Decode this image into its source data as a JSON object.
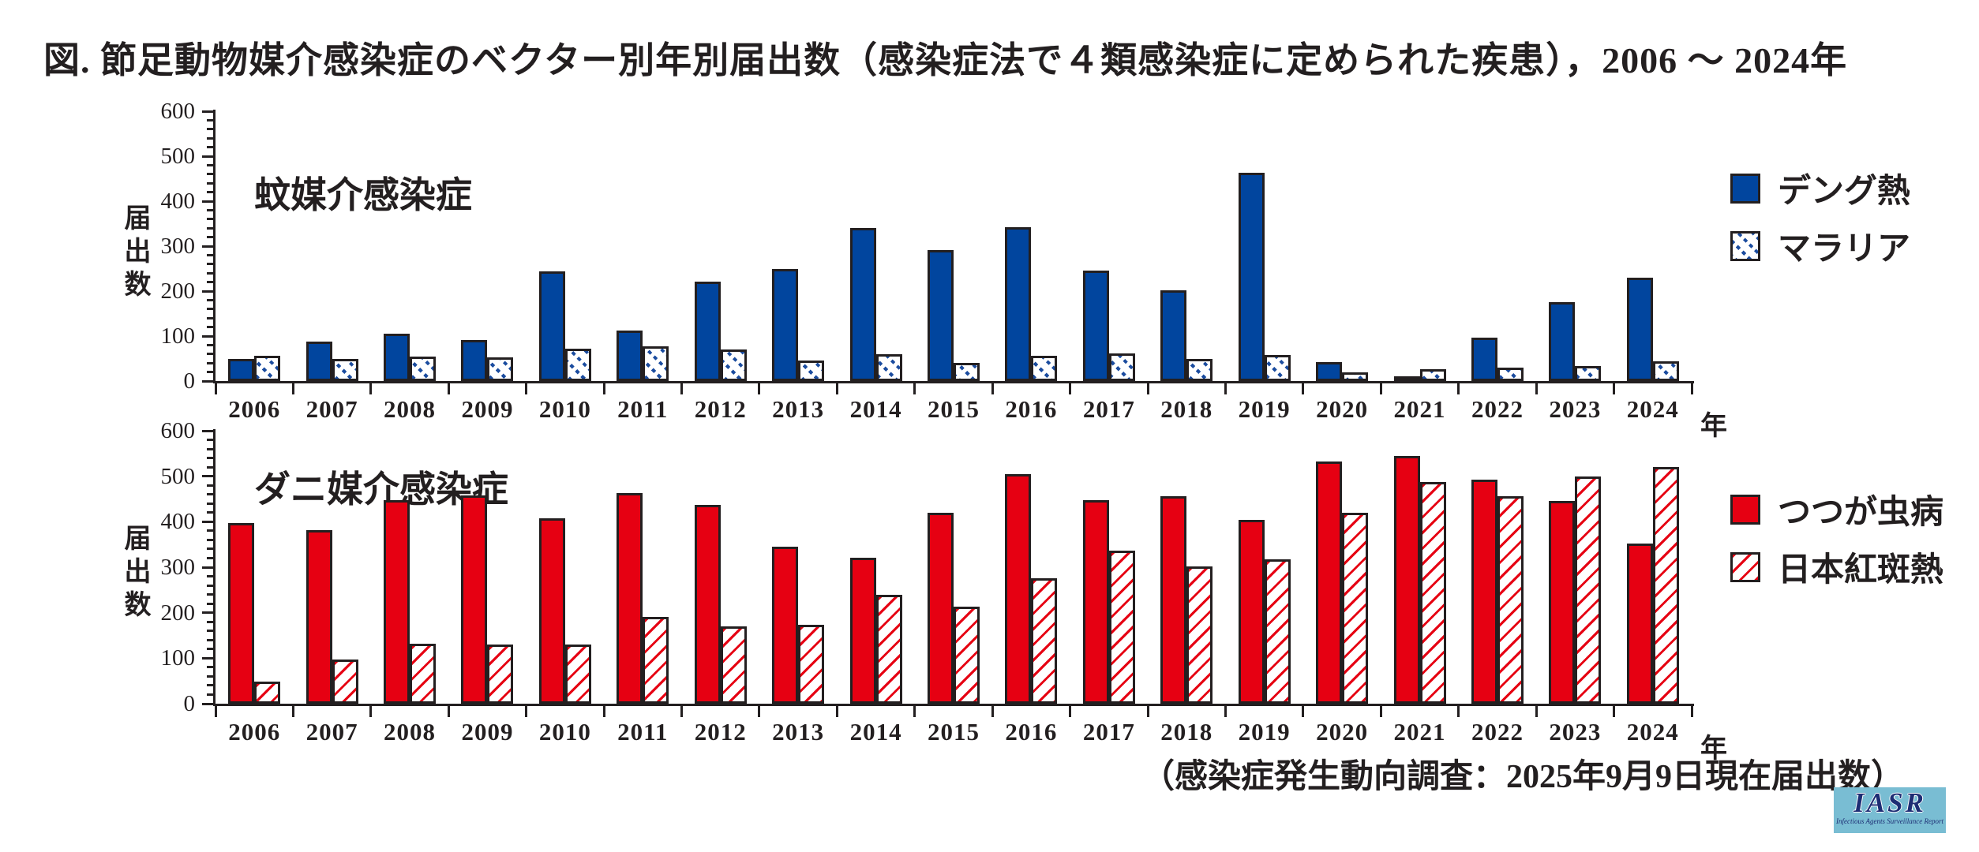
{
  "title": "図. 節足動物媒介感染症のベクター別年別届出数（感染症法で４類感染症に定められた疾患），2006 ～ 2024年",
  "footer": "（感染症発生動向調査：2025年9月9日現在届出数）",
  "axes": {
    "unit_label": "年",
    "y_axis_label": "届出数"
  },
  "colors": {
    "dengue_blue": "#01459e",
    "surveillance_red": "#e60012",
    "axis_ink": "#231f20",
    "logo_bg": "#79bdd3",
    "logo_ink": "#1d2d74"
  },
  "logo": {
    "text": "IASR",
    "subtext": "Infectious Agents Surveillance Report"
  },
  "chart_data": [
    {
      "type": "bar",
      "title": "蚊媒介感染症",
      "xlabel": "年",
      "ylabel": "届出数",
      "ylim": [
        0,
        600
      ],
      "ytick_major": 100,
      "ytick_minor": 20,
      "grid": false,
      "legend_position": "right",
      "categories": [
        "2006",
        "2007",
        "2008",
        "2009",
        "2010",
        "2011",
        "2012",
        "2013",
        "2014",
        "2015",
        "2016",
        "2017",
        "2018",
        "2019",
        "2020",
        "2021",
        "2022",
        "2023",
        "2024"
      ],
      "series": [
        {
          "name": "デング熱",
          "key": "dengue",
          "style": "solid",
          "color": "#01459e",
          "values": [
            50,
            88,
            105,
            92,
            244,
            113,
            221,
            249,
            341,
            292,
            343,
            245,
            201,
            463,
            43,
            7,
            96,
            175,
            230
          ]
        },
        {
          "name": "マラリア",
          "key": "malaria",
          "style": "hatch",
          "pattern": "hatch-blue-dots",
          "color": "#1b4c9f",
          "values": [
            57,
            50,
            55,
            53,
            72,
            78,
            70,
            46,
            60,
            40,
            57,
            62,
            50,
            58,
            19,
            26,
            30,
            34,
            44
          ]
        }
      ]
    },
    {
      "type": "bar",
      "title": "ダニ媒介感染症",
      "xlabel": "年",
      "ylabel": "届出数",
      "ylim": [
        0,
        600
      ],
      "ytick_major": 100,
      "ytick_minor": 20,
      "grid": false,
      "legend_position": "right",
      "categories": [
        "2006",
        "2007",
        "2008",
        "2009",
        "2010",
        "2011",
        "2012",
        "2013",
        "2014",
        "2015",
        "2016",
        "2017",
        "2018",
        "2019",
        "2020",
        "2021",
        "2022",
        "2023",
        "2024"
      ],
      "series": [
        {
          "name": "つつが虫病",
          "key": "tsutsugamushi",
          "style": "solid",
          "color": "#e60012",
          "values": [
            397,
            382,
            448,
            458,
            408,
            463,
            437,
            345,
            321,
            420,
            505,
            447,
            456,
            404,
            533,
            544,
            493,
            445,
            352
          ]
        },
        {
          "name": "日本紅斑熱",
          "key": "japanese-spotted-fever",
          "style": "hatch",
          "pattern": "hatch-red-diag",
          "color": "#e60012",
          "values": [
            48,
            97,
            132,
            130,
            130,
            190,
            170,
            174,
            240,
            214,
            275,
            336,
            302,
            317,
            420,
            488,
            456,
            500,
            521
          ]
        }
      ]
    }
  ]
}
